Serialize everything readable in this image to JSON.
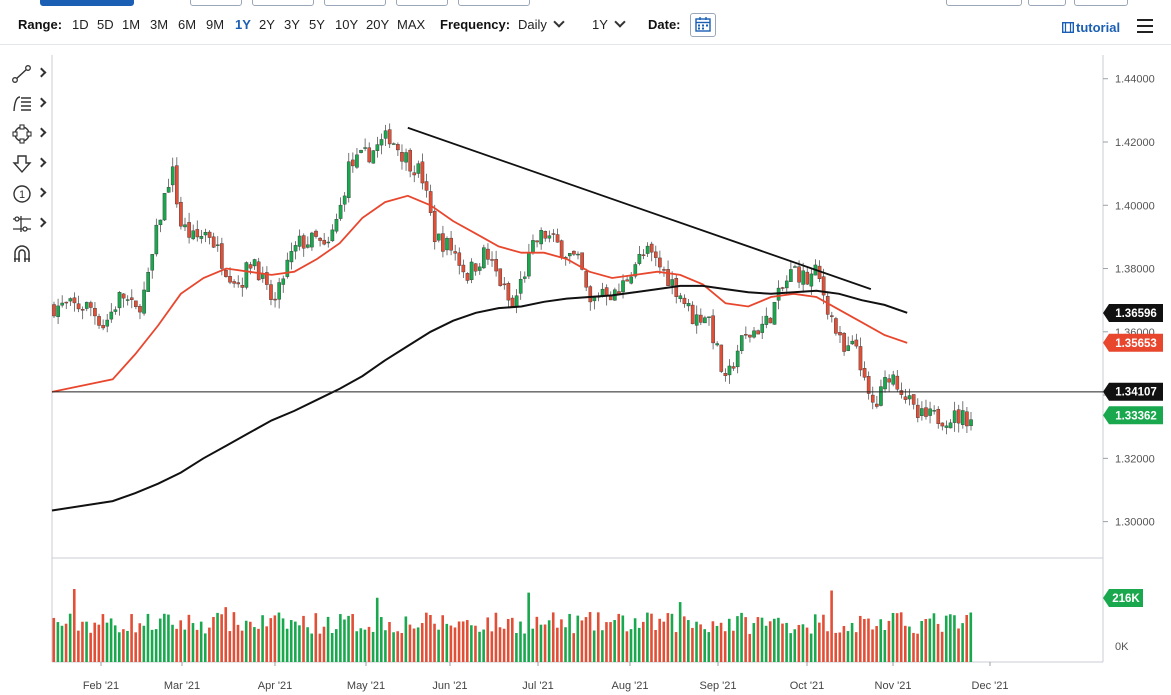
{
  "toolbar": {
    "range_label": "Range:",
    "ranges": [
      "1D",
      "5D",
      "1M",
      "3M",
      "6M",
      "9M",
      "1Y",
      "2Y",
      "3Y",
      "5Y",
      "10Y",
      "20Y",
      "MAX"
    ],
    "selected_range": "1Y",
    "frequency_label": "Frequency:",
    "frequency_value": "Daily",
    "period_value": "1Y",
    "date_label": "Date:",
    "tutorial_label": "tutorial"
  },
  "tools": [
    "line-draw-icon",
    "fib-icon",
    "shape-icon",
    "arrow-icon",
    "count-icon",
    "measure-icon",
    "magnet-icon"
  ],
  "colors": {
    "up": "#1aa84e",
    "down": "#e24f37",
    "ma_short": "#e8472e",
    "ma_long": "#111111",
    "accent": "#1a5fb4"
  },
  "price_tags": {
    "upper_trend": "1.36596",
    "ma50": "1.35653",
    "support": "1.34107",
    "last": "1.33362",
    "volume_last": "216K"
  },
  "chart_data": {
    "type": "candlestick",
    "y_ticks": [
      "1.44000",
      "1.42000",
      "1.40000",
      "1.38000",
      "1.36000",
      "1.34000",
      "1.32000",
      "1.30000"
    ],
    "ylim": [
      1.2885,
      1.4475
    ],
    "x_labels": [
      "Feb '21",
      "Mar '21",
      "Apr '21",
      "May '21",
      "Jun '21",
      "Jul '21",
      "Aug '21",
      "Sep '21",
      "Oct '21",
      "Nov '21",
      "Dec '21"
    ],
    "volume_ticks": [
      "0K"
    ],
    "anchors": [
      {
        "m": 0.0,
        "p": 1.368
      },
      {
        "m": 0.3,
        "p": 1.362
      },
      {
        "m": 0.7,
        "p": 1.372
      },
      {
        "m": 1.0,
        "p": 1.366
      },
      {
        "m": 1.25,
        "p": 1.374
      },
      {
        "m": 1.5,
        "p": 1.394
      },
      {
        "m": 1.8,
        "p": 1.412
      },
      {
        "m": 2.0,
        "p": 1.394
      },
      {
        "m": 2.3,
        "p": 1.389
      },
      {
        "m": 2.6,
        "p": 1.392
      },
      {
        "m": 3.0,
        "p": 1.38
      },
      {
        "m": 3.3,
        "p": 1.375
      },
      {
        "m": 3.6,
        "p": 1.384
      },
      {
        "m": 3.9,
        "p": 1.372
      },
      {
        "m": 4.1,
        "p": 1.369
      },
      {
        "m": 4.3,
        "p": 1.38
      },
      {
        "m": 4.6,
        "p": 1.388
      },
      {
        "m": 5.0,
        "p": 1.389
      },
      {
        "m": 5.2,
        "p": 1.385
      },
      {
        "m": 5.5,
        "p": 1.398
      },
      {
        "m": 5.7,
        "p": 1.412
      },
      {
        "m": 6.0,
        "p": 1.415
      },
      {
        "m": 6.3,
        "p": 1.418
      },
      {
        "m": 6.6,
        "p": 1.422
      },
      {
        "m": 6.9,
        "p": 1.416
      },
      {
        "m": 7.3,
        "p": 1.41
      },
      {
        "m": 7.6,
        "p": 1.39
      },
      {
        "m": 8.0,
        "p": 1.386
      },
      {
        "m": 8.3,
        "p": 1.378
      },
      {
        "m": 8.7,
        "p": 1.385
      },
      {
        "m": 9.0,
        "p": 1.377
      },
      {
        "m": 9.3,
        "p": 1.367
      },
      {
        "m": 9.5,
        "p": 1.376
      },
      {
        "m": 9.8,
        "p": 1.388
      },
      {
        "m": 10.0,
        "p": 1.391
      },
      {
        "m": 10.5,
        "p": 1.385
      },
      {
        "m": 10.8,
        "p": 1.381
      },
      {
        "m": 11.0,
        "p": 1.368
      },
      {
        "m": 11.3,
        "p": 1.374
      },
      {
        "m": 11.6,
        "p": 1.371
      },
      {
        "m": 12.0,
        "p": 1.382
      },
      {
        "m": 12.3,
        "p": 1.385
      },
      {
        "m": 12.7,
        "p": 1.378
      },
      {
        "m": 13.0,
        "p": 1.372
      },
      {
        "m": 13.3,
        "p": 1.364
      },
      {
        "m": 13.6,
        "p": 1.366
      },
      {
        "m": 14.0,
        "p": 1.343
      },
      {
        "m": 14.3,
        "p": 1.356
      },
      {
        "m": 14.6,
        "p": 1.36
      },
      {
        "m": 14.9,
        "p": 1.363
      },
      {
        "m": 15.2,
        "p": 1.372
      },
      {
        "m": 15.5,
        "p": 1.38
      },
      {
        "m": 15.8,
        "p": 1.376
      },
      {
        "m": 16.0,
        "p": 1.379
      },
      {
        "m": 16.3,
        "p": 1.366
      },
      {
        "m": 16.6,
        "p": 1.353
      },
      {
        "m": 16.9,
        "p": 1.356
      },
      {
        "m": 17.1,
        "p": 1.34
      },
      {
        "m": 17.3,
        "p": 1.336
      },
      {
        "m": 17.6,
        "p": 1.347
      },
      {
        "m": 17.8,
        "p": 1.344
      },
      {
        "m": 18.0,
        "p": 1.339
      },
      {
        "m": 18.2,
        "p": 1.333
      }
    ],
    "ma50_points": [
      {
        "m": 0.0,
        "p": 1.341
      },
      {
        "m": 0.5,
        "p": 1.345
      },
      {
        "m": 1.0,
        "p": 1.353
      },
      {
        "m": 1.5,
        "p": 1.362
      },
      {
        "m": 2.0,
        "p": 1.372
      },
      {
        "m": 2.5,
        "p": 1.377
      },
      {
        "m": 3.0,
        "p": 1.38
      },
      {
        "m": 3.5,
        "p": 1.379
      },
      {
        "m": 4.0,
        "p": 1.378
      },
      {
        "m": 4.5,
        "p": 1.379
      },
      {
        "m": 5.0,
        "p": 1.383
      },
      {
        "m": 5.5,
        "p": 1.388
      },
      {
        "m": 6.0,
        "p": 1.396
      },
      {
        "m": 6.5,
        "p": 1.401
      },
      {
        "m": 7.0,
        "p": 1.403
      },
      {
        "m": 7.5,
        "p": 1.4
      },
      {
        "m": 8.0,
        "p": 1.395
      },
      {
        "m": 8.5,
        "p": 1.391
      },
      {
        "m": 9.0,
        "p": 1.387
      },
      {
        "m": 9.5,
        "p": 1.385
      },
      {
        "m": 10.0,
        "p": 1.385
      },
      {
        "m": 10.5,
        "p": 1.383
      },
      {
        "m": 11.0,
        "p": 1.379
      },
      {
        "m": 11.5,
        "p": 1.377
      },
      {
        "m": 12.0,
        "p": 1.378
      },
      {
        "m": 12.5,
        "p": 1.379
      },
      {
        "m": 13.0,
        "p": 1.378
      },
      {
        "m": 13.5,
        "p": 1.375
      },
      {
        "m": 14.0,
        "p": 1.369
      },
      {
        "m": 14.5,
        "p": 1.368
      },
      {
        "m": 15.0,
        "p": 1.371
      },
      {
        "m": 15.5,
        "p": 1.372
      },
      {
        "m": 16.0,
        "p": 1.371
      },
      {
        "m": 16.5,
        "p": 1.367
      },
      {
        "m": 17.0,
        "p": 1.363
      },
      {
        "m": 17.5,
        "p": 1.359
      },
      {
        "m": 18.0,
        "p": 1.3565
      }
    ],
    "ma200_points": [
      {
        "m": 0.0,
        "p": 1.3035
      },
      {
        "m": 0.5,
        "p": 1.3065
      },
      {
        "m": 1.0,
        "p": 1.309
      },
      {
        "m": 1.5,
        "p": 1.312
      },
      {
        "m": 2.0,
        "p": 1.3155
      },
      {
        "m": 2.5,
        "p": 1.32
      },
      {
        "m": 3.0,
        "p": 1.324
      },
      {
        "m": 3.5,
        "p": 1.328
      },
      {
        "m": 4.0,
        "p": 1.332
      },
      {
        "m": 4.5,
        "p": 1.335
      },
      {
        "m": 5.0,
        "p": 1.3385
      },
      {
        "m": 5.5,
        "p": 1.342
      },
      {
        "m": 6.0,
        "p": 1.346
      },
      {
        "m": 6.5,
        "p": 1.351
      },
      {
        "m": 7.0,
        "p": 1.3555
      },
      {
        "m": 7.5,
        "p": 1.36
      },
      {
        "m": 8.0,
        "p": 1.3635
      },
      {
        "m": 8.5,
        "p": 1.366
      },
      {
        "m": 9.0,
        "p": 1.3675
      },
      {
        "m": 9.5,
        "p": 1.368
      },
      {
        "m": 10.0,
        "p": 1.3695
      },
      {
        "m": 10.5,
        "p": 1.3705
      },
      {
        "m": 11.0,
        "p": 1.371
      },
      {
        "m": 11.5,
        "p": 1.3715
      },
      {
        "m": 12.0,
        "p": 1.3725
      },
      {
        "m": 12.5,
        "p": 1.3735
      },
      {
        "m": 13.0,
        "p": 1.3745
      },
      {
        "m": 13.5,
        "p": 1.3745
      },
      {
        "m": 14.0,
        "p": 1.3735
      },
      {
        "m": 14.5,
        "p": 1.3725
      },
      {
        "m": 15.0,
        "p": 1.372
      },
      {
        "m": 15.5,
        "p": 1.3725
      },
      {
        "m": 16.0,
        "p": 1.373
      },
      {
        "m": 16.5,
        "p": 1.372
      },
      {
        "m": 17.0,
        "p": 1.37
      },
      {
        "m": 17.5,
        "p": 1.3685
      },
      {
        "m": 18.0,
        "p": 1.366
      }
    ],
    "trendline": [
      {
        "m": 7.0,
        "p": 1.4245
      },
      {
        "m": 17.2,
        "p": 1.3735
      }
    ],
    "support_level": 1.341
  }
}
